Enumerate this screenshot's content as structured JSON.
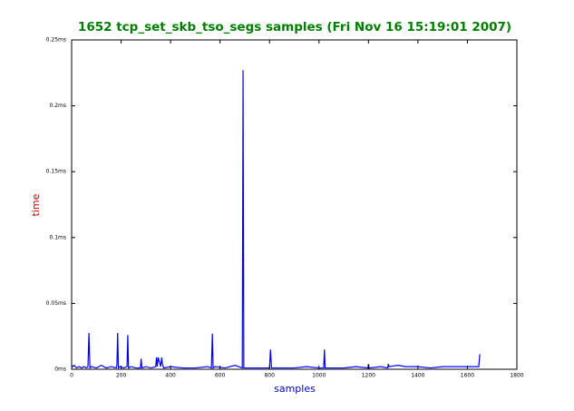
{
  "chart_data": {
    "type": "line",
    "title": "1652 tcp_set_skb_tso_segs samples (Fri Nov 16 15:19:01 2007)",
    "x_label": "samples",
    "y_label": "time",
    "x": [
      0,
      5,
      10,
      20,
      30,
      40,
      50,
      60,
      66,
      70,
      74,
      80,
      100,
      120,
      140,
      160,
      180,
      183,
      186,
      189,
      195,
      210,
      224,
      227,
      230,
      240,
      260,
      278,
      281,
      284,
      300,
      320,
      340,
      343,
      346,
      350,
      360,
      364,
      367,
      372,
      400,
      450,
      500,
      550,
      565,
      569,
      572,
      580,
      620,
      660,
      690,
      693,
      696,
      720,
      760,
      800,
      804,
      808,
      850,
      900,
      950,
      1000,
      1019,
      1022,
      1025,
      1060,
      1100,
      1150,
      1198,
      1200,
      1203,
      1250,
      1278,
      1280,
      1283,
      1320,
      1350,
      1400,
      1450,
      1500,
      1550,
      1600,
      1640,
      1646,
      1650,
      1652
    ],
    "series": [
      {
        "color": "#0000ff",
        "values": [
          0.003,
          0.002,
          0.003,
          0.001,
          0.002,
          0.001,
          0.002,
          0.001,
          0.002,
          0.0275,
          0.001,
          0.002,
          0.001,
          0.003,
          0.001,
          0.002,
          0.001,
          0.003,
          0.0275,
          0.001,
          0.002,
          0.001,
          0.002,
          0.026,
          0.001,
          0.002,
          0.001,
          0.001,
          0.008,
          0.001,
          0.002,
          0.001,
          0.002,
          0.009,
          0.002,
          0.009,
          0.002,
          0.009,
          0.004,
          0.001,
          0.002,
          0.001,
          0.001,
          0.002,
          0.001,
          0.027,
          0.001,
          0.002,
          0.001,
          0.003,
          0.001,
          0.227,
          0.001,
          0.001,
          0.001,
          0.001,
          0.015,
          0.001,
          0.001,
          0.001,
          0.002,
          0.001,
          0.001,
          0.015,
          0.001,
          0.001,
          0.001,
          0.002,
          0.001,
          0.004,
          0.001,
          0.002,
          0.001,
          0.004,
          0.002,
          0.003,
          0.002,
          0.002,
          0.001,
          0.002,
          0.002,
          0.002,
          0.002,
          0.002,
          0.011,
          0.011
        ]
      }
    ],
    "xlim": [
      0,
      1800
    ],
    "xticks": [
      0,
      200,
      400,
      600,
      800,
      1000,
      1200,
      1400,
      1600,
      1800
    ],
    "ylim": [
      0,
      0.25
    ],
    "yticks": [
      {
        "value": 0,
        "label": "0ms"
      },
      {
        "value": 0.05,
        "label": "0.05ms"
      },
      {
        "value": 0.1,
        "label": "0.1ms"
      },
      {
        "value": 0.15,
        "label": "0.15ms"
      },
      {
        "value": 0.2,
        "label": "0.2ms"
      },
      {
        "value": 0.25,
        "label": "0.25ms"
      }
    ],
    "title_color": "#008000",
    "x_label_color": "#0000cc",
    "y_label_color": "#cc0000"
  }
}
